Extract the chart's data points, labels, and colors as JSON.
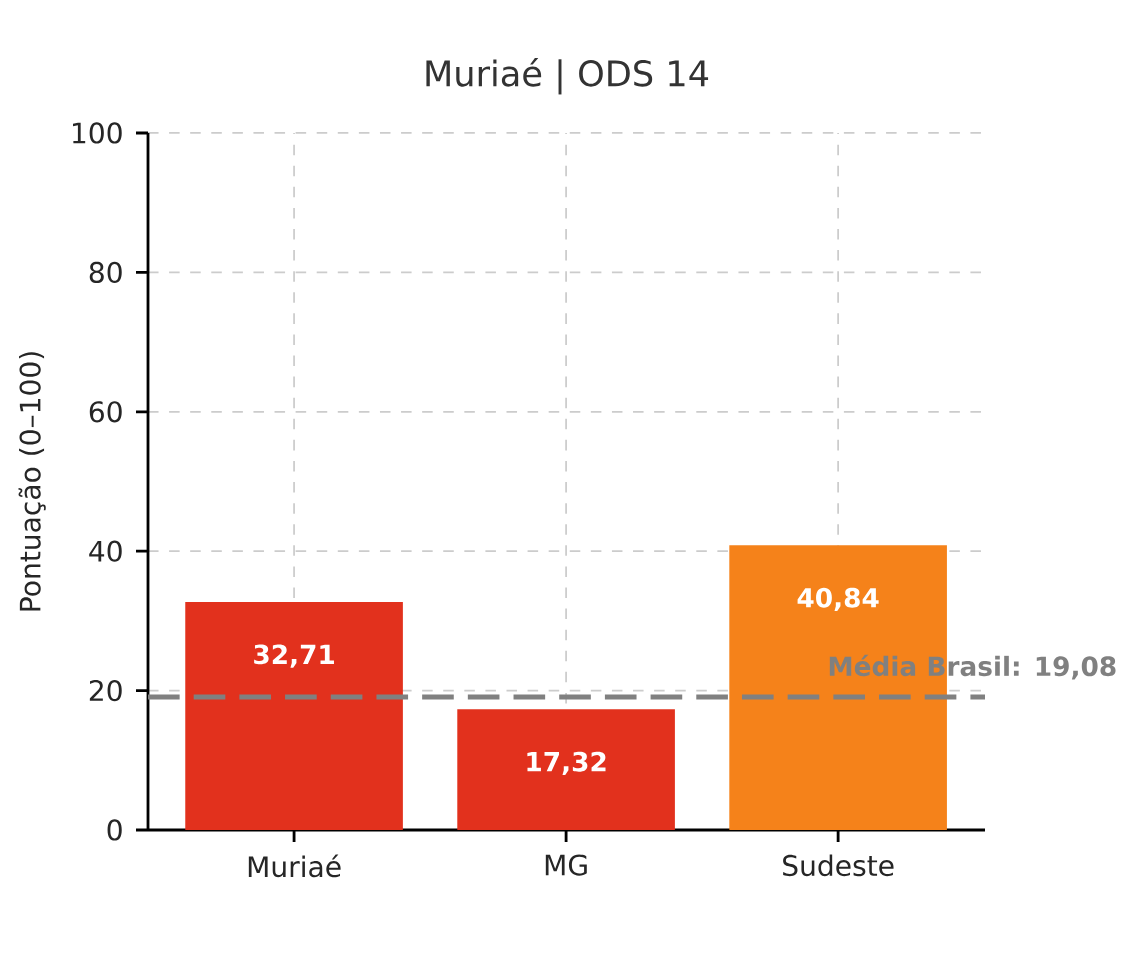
{
  "chart_data": {
    "type": "bar",
    "title": "Muriaé | ODS 14",
    "ylabel": "Pontuação (0–100)",
    "categories": [
      "Muriaé",
      "MG",
      "Sudeste"
    ],
    "values": [
      32.71,
      17.32,
      40.84
    ],
    "colors": [
      "#e2311d",
      "#e2311d",
      "#f5821a"
    ],
    "value_labels": [
      "32,71",
      "17,32",
      "40,84"
    ],
    "ylim": [
      0,
      100
    ],
    "yticks": [
      0,
      20,
      40,
      60,
      80,
      100
    ],
    "grid": true,
    "ref_lines": [
      {
        "axis": "y",
        "value": 19.08,
        "label": "Média Brasil: 19,08",
        "color": "#808080",
        "line_style": "dashed"
      }
    ]
  }
}
